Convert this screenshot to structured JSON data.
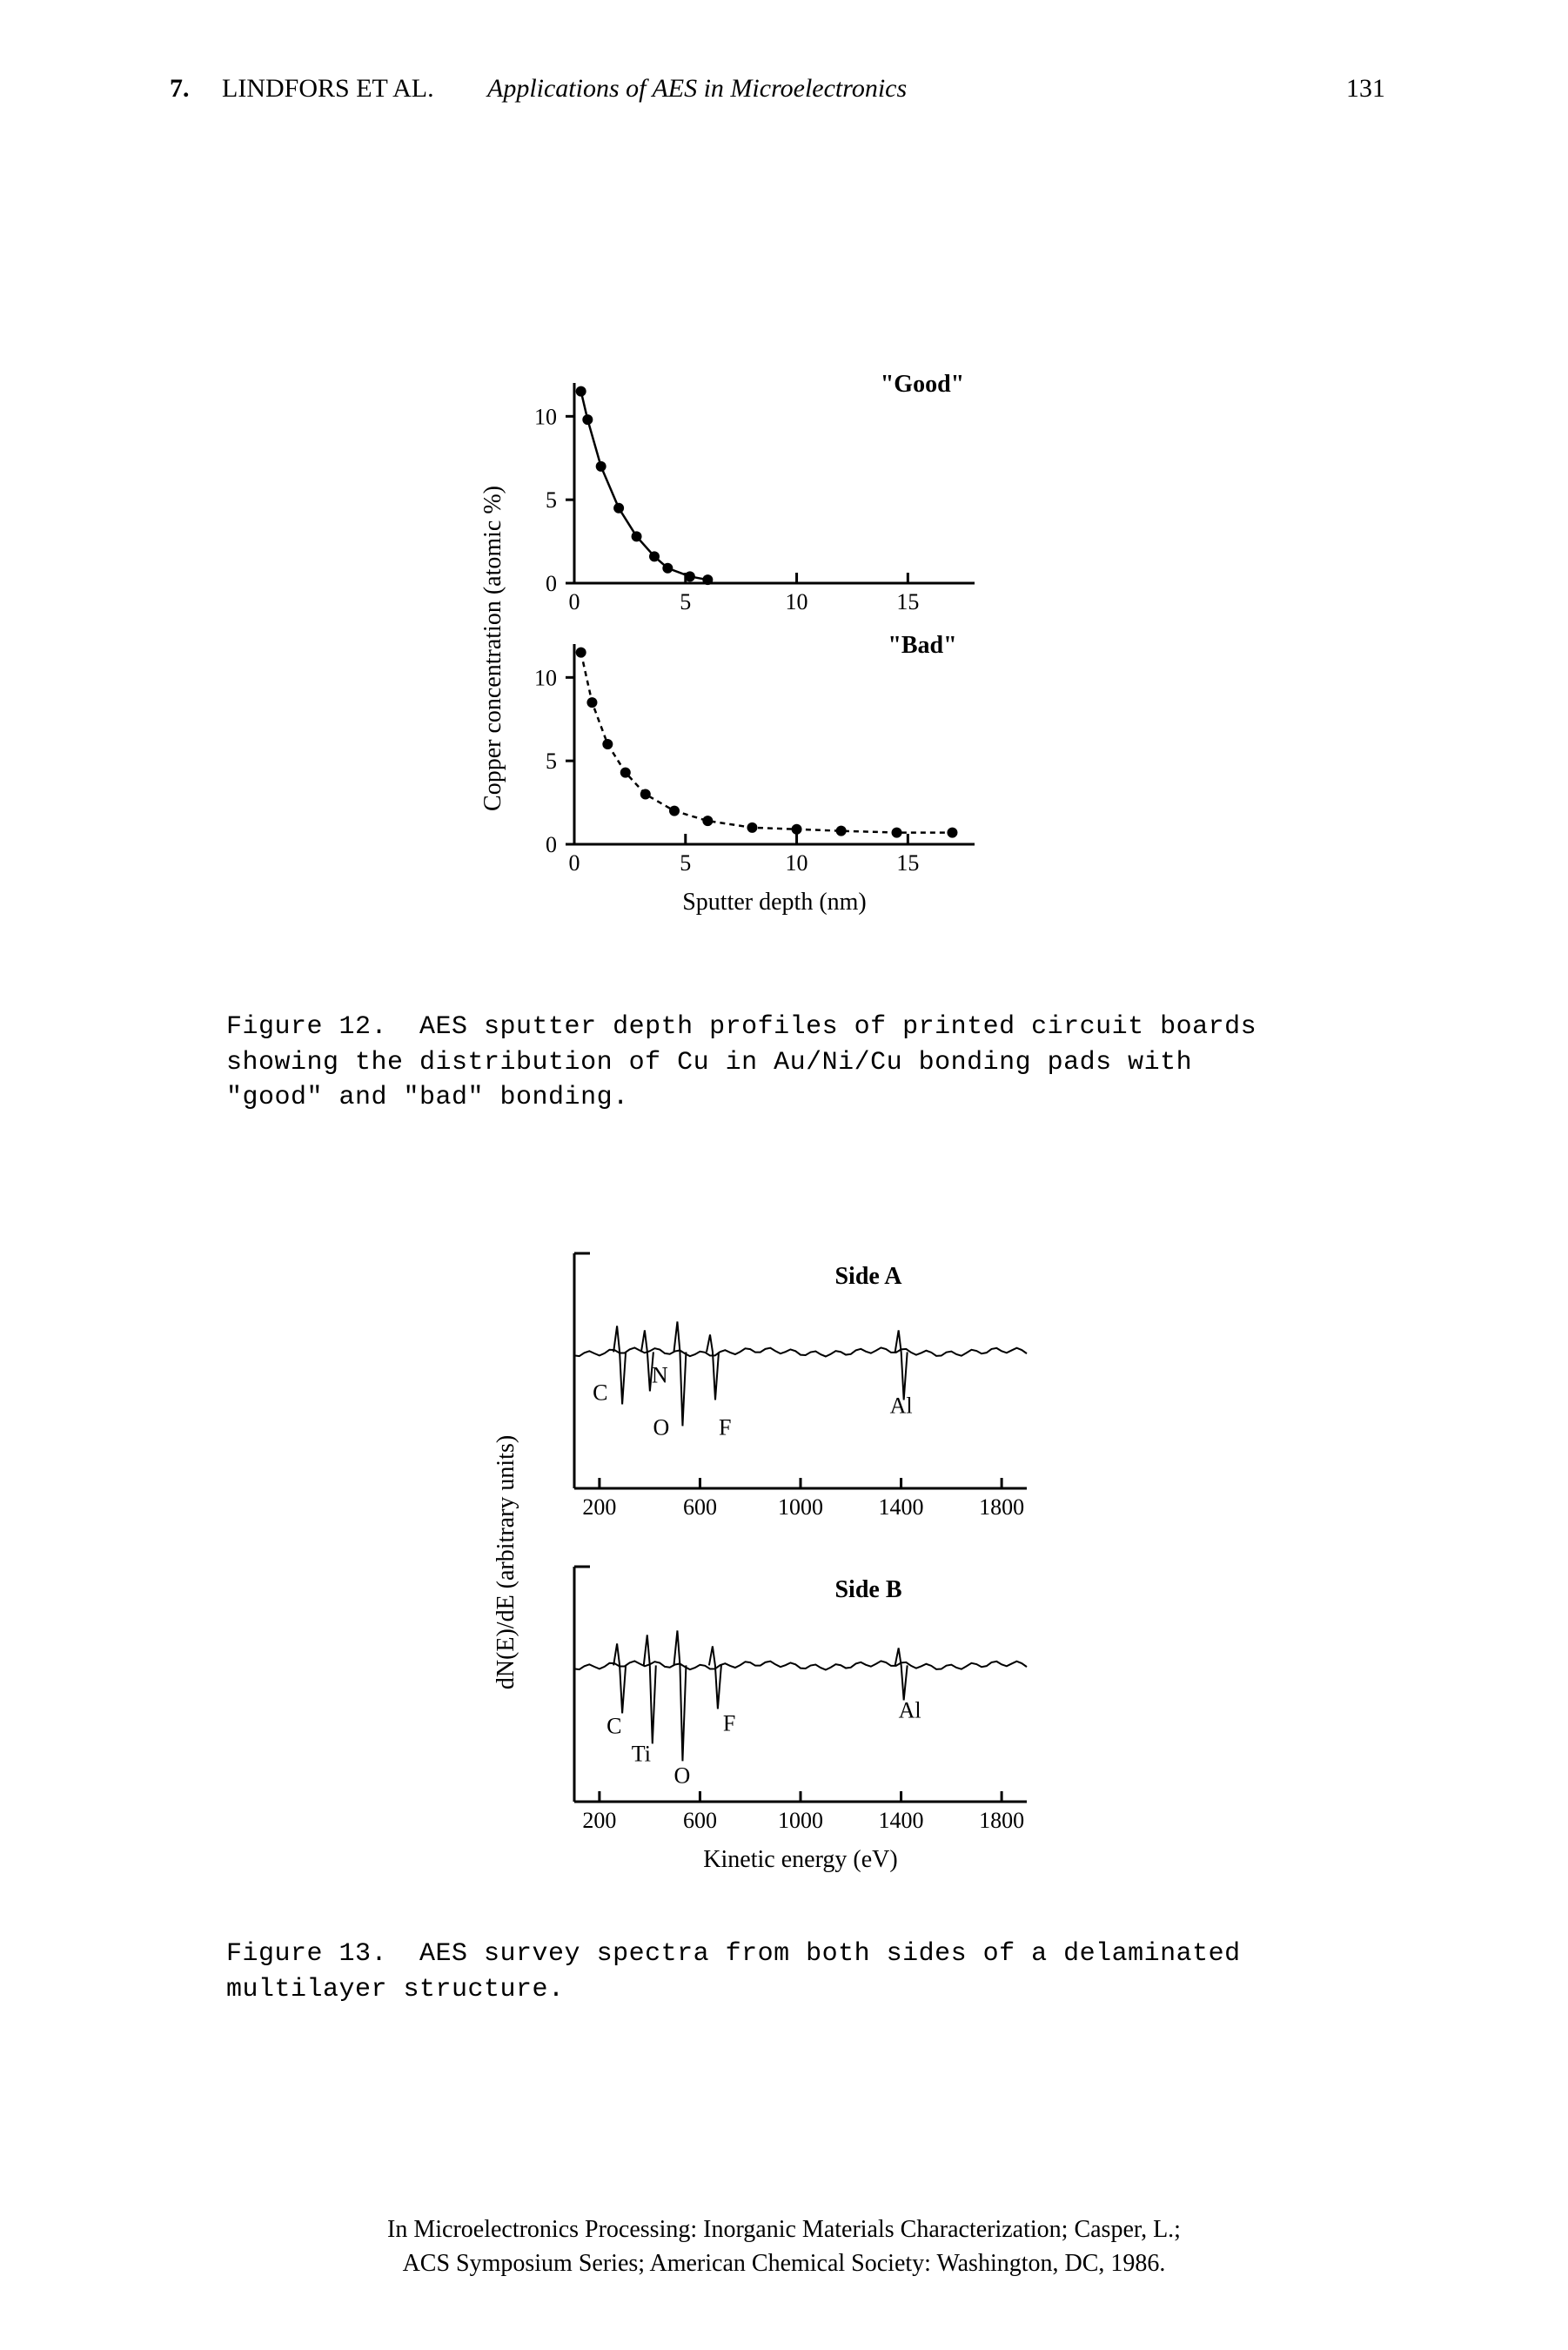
{
  "header": {
    "chapter_number": "7.",
    "authors": "LINDFORS ET AL.",
    "title_italic": "Applications of AES in Microelectronics",
    "page_number": "131"
  },
  "figure12": {
    "good_label": "\"Good\"",
    "bad_label": "\"Bad\"",
    "y_label": "Copper concentration (atomic %)",
    "x_label": "Sputter depth (nm)",
    "y_ticks": [
      "0",
      "5",
      "10"
    ],
    "x_ticks": [
      "0",
      "5",
      "10",
      "15"
    ],
    "good": {
      "points": [
        {
          "x": 0.3,
          "y": 11.5
        },
        {
          "x": 0.6,
          "y": 9.8
        },
        {
          "x": 1.2,
          "y": 7.0
        },
        {
          "x": 2.0,
          "y": 4.5
        },
        {
          "x": 2.8,
          "y": 2.8
        },
        {
          "x": 3.6,
          "y": 1.6
        },
        {
          "x": 4.2,
          "y": 0.9
        },
        {
          "x": 5.2,
          "y": 0.4
        },
        {
          "x": 6.0,
          "y": 0.2
        }
      ],
      "line_dash": "none"
    },
    "bad": {
      "points": [
        {
          "x": 0.3,
          "y": 11.5
        },
        {
          "x": 0.8,
          "y": 8.5
        },
        {
          "x": 1.5,
          "y": 6.0
        },
        {
          "x": 2.3,
          "y": 4.3
        },
        {
          "x": 3.2,
          "y": 3.0
        },
        {
          "x": 4.5,
          "y": 2.0
        },
        {
          "x": 6.0,
          "y": 1.4
        },
        {
          "x": 8.0,
          "y": 1.0
        },
        {
          "x": 10.0,
          "y": 0.9
        },
        {
          "x": 12.0,
          "y": 0.8
        },
        {
          "x": 14.5,
          "y": 0.7
        },
        {
          "x": 17.0,
          "y": 0.7
        }
      ],
      "line_dash": "6,5"
    },
    "xlim": [
      0,
      18
    ],
    "ylim": [
      0,
      12
    ],
    "point_color": "#000000",
    "line_color": "#000000",
    "line_width": 2.5,
    "point_radius": 6,
    "caption": "Figure 12.  AES sputter depth profiles of printed circuit boards\nshowing the distribution of Cu in Au/Ni/Cu bonding pads with\n\"good\" and \"bad\" bonding."
  },
  "figure13": {
    "y_label": "dN(E)/dE (arbitrary units)",
    "x_label": "Kinetic energy (eV)",
    "x_ticks": [
      "200",
      "600",
      "1000",
      "1400",
      "1800"
    ],
    "side_a_label": "Side A",
    "side_b_label": "Side B",
    "peaks_a": [
      "C",
      "N",
      "O",
      "F",
      "Al"
    ],
    "peaks_b": [
      "C",
      "Ti",
      "O",
      "F",
      "Al"
    ],
    "line_color": "#000000",
    "line_width": 2,
    "caption": "Figure 13.  AES survey spectra from both sides of a delaminated\nmultilayer structure."
  },
  "footer": {
    "line1": "In Microelectronics Processing: Inorganic Materials Characterization; Casper, L.;",
    "line2": "ACS Symposium Series; American Chemical Society: Washington, DC, 1986."
  },
  "colors": {
    "text": "#000000",
    "background": "#ffffff"
  }
}
